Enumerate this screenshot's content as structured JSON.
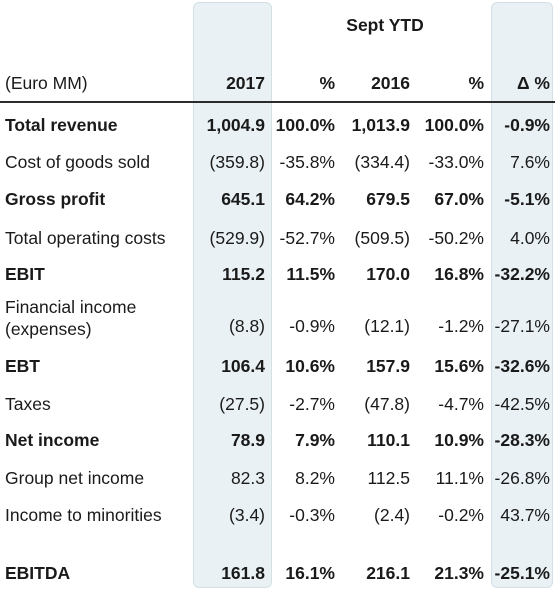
{
  "header": {
    "group_title": "Sept YTD",
    "units_label": "(Euro MM)",
    "columns": [
      "2017",
      "%",
      "2016",
      "%",
      "Δ %"
    ]
  },
  "rows": [
    {
      "label": "Total revenue",
      "bold": true,
      "values": [
        "1,004.9",
        "100.0%",
        "1,013.9",
        "100.0%",
        "-0.9%"
      ]
    },
    {
      "label": "Cost of goods sold",
      "bold": false,
      "values": [
        "(359.8)",
        "-35.8%",
        "(334.4)",
        "-33.0%",
        "7.6%"
      ]
    },
    {
      "label": "Gross profit",
      "bold": true,
      "values": [
        "645.1",
        "64.2%",
        "679.5",
        "67.0%",
        "-5.1%"
      ]
    },
    {
      "label": "Total operating costs",
      "bold": false,
      "values": [
        "(529.9)",
        "-52.7%",
        "(509.5)",
        "-50.2%",
        "4.0%"
      ]
    },
    {
      "label": "EBIT",
      "bold": true,
      "values": [
        "115.2",
        "11.5%",
        "170.0",
        "16.8%",
        "-32.2%"
      ]
    },
    {
      "label": "Financial income (expenses)",
      "bold": false,
      "values": [
        "(8.8)",
        "-0.9%",
        "(12.1)",
        "-1.2%",
        "-27.1%"
      ]
    },
    {
      "label": "EBT",
      "bold": true,
      "values": [
        "106.4",
        "10.6%",
        "157.9",
        "15.6%",
        "-32.6%"
      ]
    },
    {
      "label": "Taxes",
      "bold": false,
      "values": [
        "(27.5)",
        "-2.7%",
        "(47.8)",
        "-4.7%",
        "-42.5%"
      ]
    },
    {
      "label": "Net income",
      "bold": true,
      "values": [
        "78.9",
        "7.9%",
        "110.1",
        "10.9%",
        "-28.3%"
      ]
    },
    {
      "label": "Group net income",
      "bold": false,
      "values": [
        "82.3",
        "8.2%",
        "112.5",
        "11.1%",
        "-26.8%"
      ]
    },
    {
      "label": "Income to minorities",
      "bold": false,
      "values": [
        "(3.4)",
        "-0.3%",
        "(2.4)",
        "-0.2%",
        "43.7%"
      ]
    },
    {
      "label": "EBITDA",
      "bold": true,
      "values": [
        "161.8",
        "16.1%",
        "216.1",
        "21.3%",
        "-25.1%"
      ]
    }
  ],
  "colors": {
    "highlight": "#e9f1f4",
    "rule": "#2b2b2b"
  }
}
